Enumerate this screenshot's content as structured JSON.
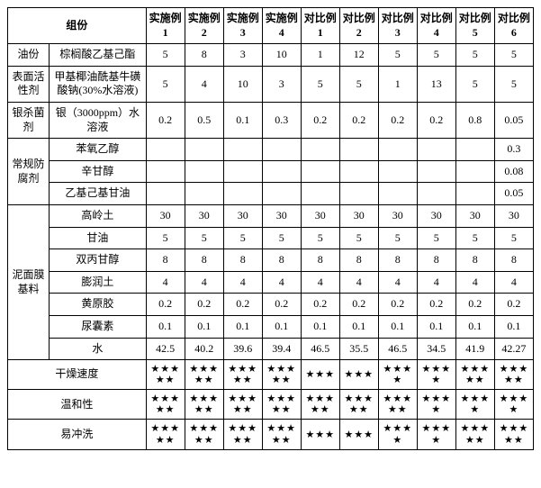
{
  "headers": {
    "group": "组份",
    "cols": [
      "实施例1",
      "实施例2",
      "实施例3",
      "实施例4",
      "对比例1",
      "对比例2",
      "对比例3",
      "对比例4",
      "对比例5",
      "对比例6"
    ]
  },
  "sections": [
    {
      "label": "油份",
      "rows": [
        {
          "name": "棕榈酸乙基己酯",
          "vals": [
            "5",
            "8",
            "3",
            "10",
            "1",
            "12",
            "5",
            "5",
            "5",
            "5"
          ]
        }
      ]
    },
    {
      "label": "表面活性剂",
      "rows": [
        {
          "name": "甲基椰油酰基牛磺酸钠(30%水溶液)",
          "vals": [
            "5",
            "4",
            "10",
            "3",
            "5",
            "5",
            "1",
            "13",
            "5",
            "5"
          ]
        }
      ]
    },
    {
      "label": "银杀菌剂",
      "rows": [
        {
          "name": "银（3000ppm）水溶液",
          "vals": [
            "0.2",
            "0.5",
            "0.1",
            "0.3",
            "0.2",
            "0.2",
            "0.2",
            "0.2",
            "0.8",
            "0.05"
          ]
        }
      ]
    },
    {
      "label": "常规防腐剂",
      "rows": [
        {
          "name": "苯氧乙醇",
          "vals": [
            "",
            "",
            "",
            "",
            "",
            "",
            "",
            "",
            "",
            "0.3"
          ]
        },
        {
          "name": "辛甘醇",
          "vals": [
            "",
            "",
            "",
            "",
            "",
            "",
            "",
            "",
            "",
            "0.08"
          ]
        },
        {
          "name": "乙基己基甘油",
          "vals": [
            "",
            "",
            "",
            "",
            "",
            "",
            "",
            "",
            "",
            "0.05"
          ]
        }
      ]
    },
    {
      "label": "泥面膜基料",
      "rows": [
        {
          "name": "高岭土",
          "vals": [
            "30",
            "30",
            "30",
            "30",
            "30",
            "30",
            "30",
            "30",
            "30",
            "30"
          ]
        },
        {
          "name": "甘油",
          "vals": [
            "5",
            "5",
            "5",
            "5",
            "5",
            "5",
            "5",
            "5",
            "5",
            "5"
          ]
        },
        {
          "name": "双丙甘醇",
          "vals": [
            "8",
            "8",
            "8",
            "8",
            "8",
            "8",
            "8",
            "8",
            "8",
            "8"
          ]
        },
        {
          "name": "膨润土",
          "vals": [
            "4",
            "4",
            "4",
            "4",
            "4",
            "4",
            "4",
            "4",
            "4",
            "4"
          ]
        },
        {
          "name": "黄原胶",
          "vals": [
            "0.2",
            "0.2",
            "0.2",
            "0.2",
            "0.2",
            "0.2",
            "0.2",
            "0.2",
            "0.2",
            "0.2"
          ]
        },
        {
          "name": "尿囊素",
          "vals": [
            "0.1",
            "0.1",
            "0.1",
            "0.1",
            "0.1",
            "0.1",
            "0.1",
            "0.1",
            "0.1",
            "0.1"
          ]
        },
        {
          "name": "水",
          "vals": [
            "42.5",
            "40.2",
            "39.6",
            "39.4",
            "46.5",
            "35.5",
            "46.5",
            "34.5",
            "41.9",
            "42.27"
          ]
        }
      ]
    }
  ],
  "ratings": [
    {
      "label": "干燥速度",
      "vals": [
        5,
        5,
        5,
        5,
        3,
        3,
        4,
        4,
        5,
        5
      ]
    },
    {
      "label": "温和性",
      "vals": [
        5,
        5,
        5,
        5,
        5,
        5,
        5,
        4,
        4,
        4
      ]
    },
    {
      "label": "易冲洗",
      "vals": [
        5,
        5,
        5,
        5,
        3,
        3,
        4,
        4,
        5,
        5
      ]
    }
  ],
  "style": {
    "background_color": "#ffffff",
    "border_color": "#000000",
    "font_family": "SimSun",
    "font_size": 12,
    "star_char": "★"
  }
}
